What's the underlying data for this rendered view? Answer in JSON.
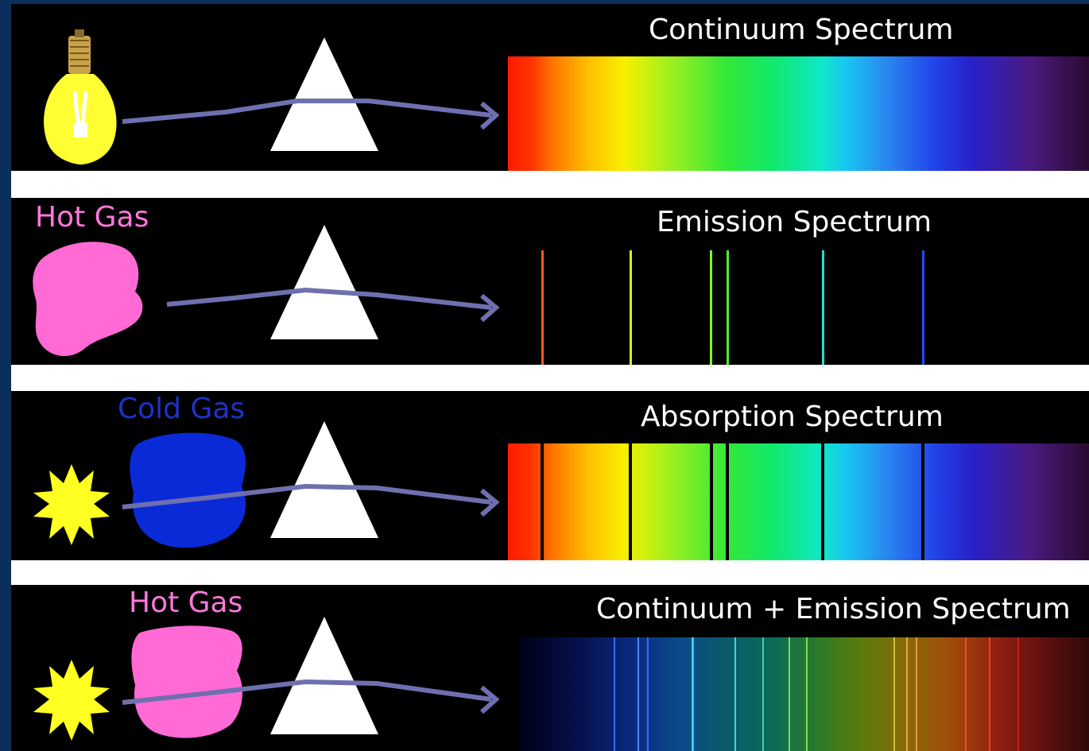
{
  "colors": {
    "background": "#0b2f5a",
    "panel": "#000000",
    "separator": "#ffffff",
    "beam": "#6f6fb0",
    "prism": "#ffffff",
    "bulb": "#ffff33",
    "star": "#ffff22",
    "hot_gas": "#ff6ad5",
    "cold_gas": "#0a2ad8",
    "cold_gas_label": "#1c33c8",
    "hot_gas_label": "#ff77dd"
  },
  "panels": [
    {
      "title": "Continuum Spectrum",
      "source": "light-bulb-icon",
      "gas_label": "",
      "spectrum_type": "continuum"
    },
    {
      "title": "Emission Spectrum",
      "source": "hot-gas-cloud",
      "gas_label": "Hot Gas",
      "spectrum_type": "emission",
      "line_colors": [
        "#ff5a1a",
        "#d8f020",
        "#7cff2a",
        "#4cf02a",
        "#22e0c8",
        "#2a46ff"
      ]
    },
    {
      "title": "Absorption Spectrum",
      "source": "star-icon",
      "gas_label": "Cold Gas",
      "spectrum_type": "absorption"
    },
    {
      "title": "Continuum + Emission Spectrum",
      "source": "star-icon",
      "gas_label": "Hot Gas",
      "spectrum_type": "continuum_plus_emission"
    }
  ]
}
